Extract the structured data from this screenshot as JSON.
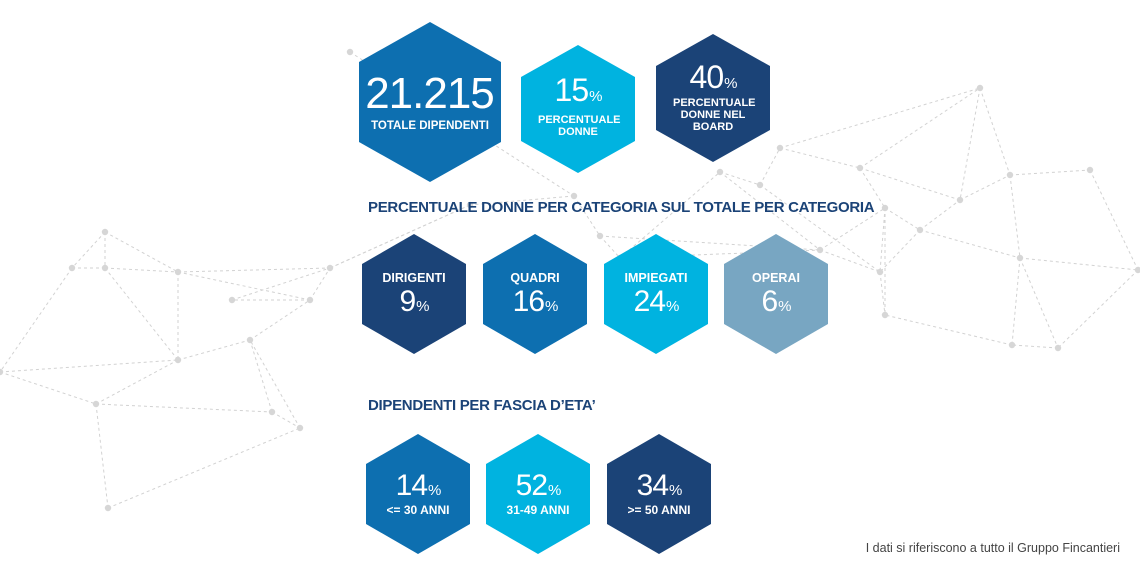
{
  "colors": {
    "dark_blue": "#1b4377",
    "mid_blue": "#0d6fb0",
    "cyan": "#00b3e0",
    "gray_blue": "#78a6c2",
    "title": "#1b4377"
  },
  "top": [
    {
      "value": "21.215",
      "unit": "",
      "label": "TOTALE DIPENDENTI"
    },
    {
      "value": "15",
      "unit": "%",
      "label": "PERCENTUALE DONNE"
    },
    {
      "value": "40",
      "unit": "%",
      "label": "PERCENTUALE DONNE NEL BOARD"
    }
  ],
  "categories_title": "PERCENTUALE DONNE PER CATEGORIA SUL TOTALE PER CATEGORIA",
  "categories": [
    {
      "label": "DIRIGENTI",
      "value": "9",
      "unit": "%"
    },
    {
      "label": "QUADRI",
      "value": "16",
      "unit": "%"
    },
    {
      "label": "IMPIEGATI",
      "value": "24",
      "unit": "%"
    },
    {
      "label": "OPERAI",
      "value": "6",
      "unit": "%"
    }
  ],
  "age_title": "DIPENDENTI PER FASCIA D’ETA’",
  "age": [
    {
      "value": "14",
      "unit": "%",
      "label": "<= 30 ANNI"
    },
    {
      "value": "52",
      "unit": "%",
      "label": "31-49 ANNI"
    },
    {
      "value": "34",
      "unit": "%",
      "label": ">= 50 ANNI"
    }
  ],
  "footnote": "I dati si riferiscono a tutto il Gruppo Fincantieri"
}
